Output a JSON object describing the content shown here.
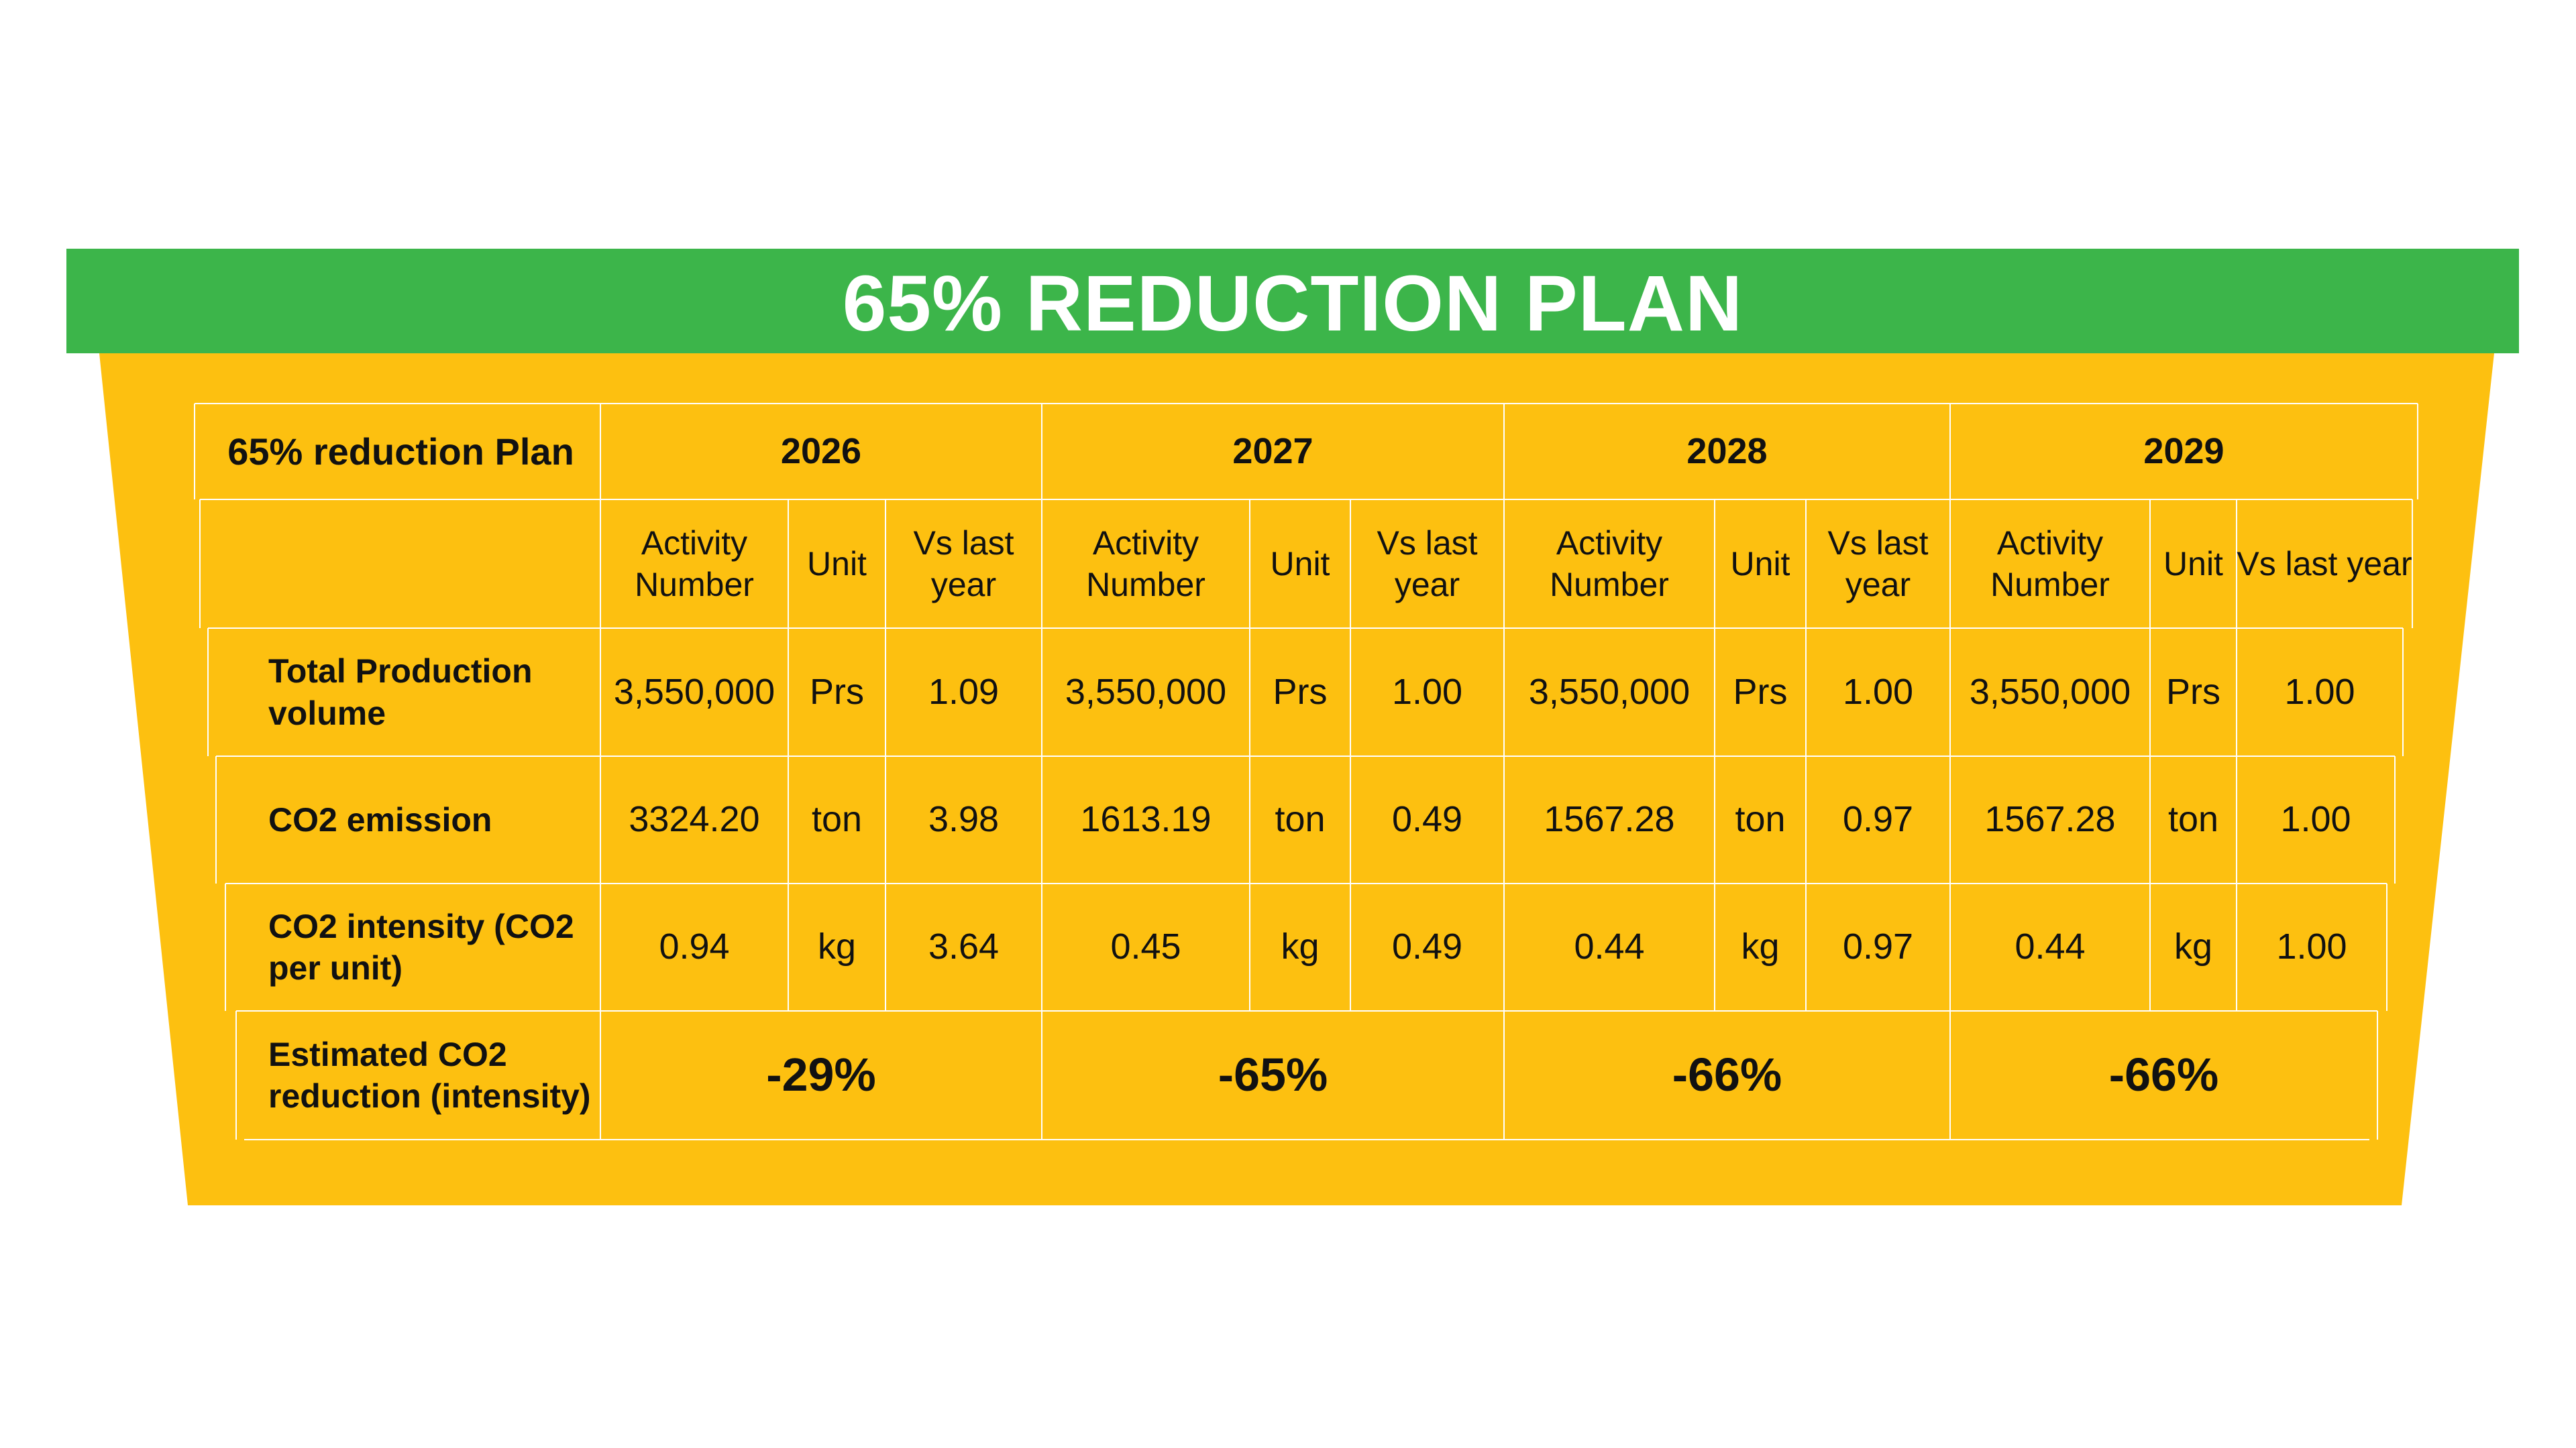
{
  "title": "65% REDUCTION PLAN",
  "colors": {
    "banner": "#3cb54a",
    "panel": "#fdc010",
    "grid_line": "#ffffff",
    "text": "#111111"
  },
  "table": {
    "corner_label": "65% reduction Plan",
    "years": [
      "2026",
      "2027",
      "2028",
      "2029"
    ],
    "sub_headers": {
      "activity": "Activity Number",
      "unit": "Unit",
      "vs": "Vs last year"
    },
    "rows": [
      {
        "label": "Total Production volume",
        "cells": [
          {
            "activity": "3,550,000",
            "unit": "Prs",
            "vs": "1.09"
          },
          {
            "activity": "3,550,000",
            "unit": "Prs",
            "vs": "1.00"
          },
          {
            "activity": "3,550,000",
            "unit": "Prs",
            "vs": "1.00"
          },
          {
            "activity": "3,550,000",
            "unit": "Prs",
            "vs": "1.00"
          }
        ]
      },
      {
        "label": "CO2 emission",
        "cells": [
          {
            "activity": "3324.20",
            "unit": "ton",
            "vs": "3.98"
          },
          {
            "activity": "1613.19",
            "unit": "ton",
            "vs": "0.49"
          },
          {
            "activity": "1567.28",
            "unit": "ton",
            "vs": "0.97"
          },
          {
            "activity": "1567.28",
            "unit": "ton",
            "vs": "1.00"
          }
        ]
      },
      {
        "label": "CO2 intensity (CO2 per unit)",
        "cells": [
          {
            "activity": "0.94",
            "unit": "kg",
            "vs": "3.64"
          },
          {
            "activity": "0.45",
            "unit": "kg",
            "vs": "0.49"
          },
          {
            "activity": "0.44",
            "unit": "kg",
            "vs": "0.97"
          },
          {
            "activity": "0.44",
            "unit": "kg",
            "vs": "1.00"
          }
        ]
      }
    ],
    "reduction_row": {
      "label": "Estimated CO2 reduction (intensity)",
      "values": [
        "-29%",
        "-65%",
        "-66%",
        "-66%"
      ]
    }
  }
}
